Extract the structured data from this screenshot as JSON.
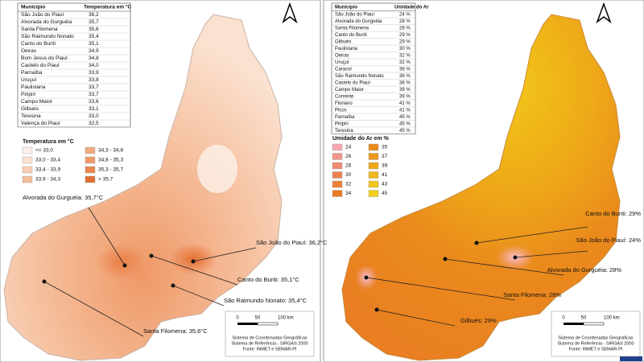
{
  "temperature_panel": {
    "table": {
      "header": [
        "Município",
        "Temperatura em °C"
      ],
      "rows": [
        [
          "São João do Piauí",
          "36,2"
        ],
        [
          "Alvorada do Gurguéia",
          "35,7"
        ],
        [
          "Santa Filomena",
          "35,6"
        ],
        [
          "São Raimundo Nonato",
          "35,4"
        ],
        [
          "Canto do Buriti",
          "35,1"
        ],
        [
          "Oeiras",
          "34,9"
        ],
        [
          "Bom Jesus do Piauí",
          "34,8"
        ],
        [
          "Castelo do Piauí",
          "34,0"
        ],
        [
          "Parnaíba",
          "33,9"
        ],
        [
          "Uruçuí",
          "33,8"
        ],
        [
          "Paulistana",
          "33,7"
        ],
        [
          "Piripiri",
          "33,7"
        ],
        [
          "Campo Maior",
          "33,6"
        ],
        [
          "Gilbués",
          "33,1"
        ],
        [
          "Teresina",
          "33,0"
        ],
        [
          "Valença do Piauí",
          "32,5"
        ]
      ]
    },
    "legend": {
      "title": "Temperatura em °C",
      "items": [
        {
          "label": "<= 33,0",
          "color": "#fdf1ea"
        },
        {
          "label": "33,0 - 33,4",
          "color": "#fbe1d0"
        },
        {
          "label": "33,4 - 33,9",
          "color": "#f8cfb5"
        },
        {
          "label": "33,9 - 34,3",
          "color": "#f5bd9a"
        },
        {
          "label": "34,3 - 34,8",
          "color": "#f2ab80"
        },
        {
          "label": "34,8 - 35,3",
          "color": "#ef9866"
        },
        {
          "label": "35,3 - 35,7",
          "color": "#eb844c"
        },
        {
          "label": "> 35,7",
          "color": "#e46f33"
        }
      ]
    },
    "annotations": [
      "Alvorada do Gurguéia: 35,7°C",
      "São João do Piauí: 36,2°C",
      "Canto do Buriti: 35,1°C",
      "São Raimundo Nonato: 35,4°C",
      "Santa Filomena: 35,6°C"
    ],
    "scale": [
      "0",
      "50",
      "100 km"
    ],
    "credits": [
      "Sistema de Coordenadas Geográficas",
      "Sistema de Referência - SIRGAS 2000",
      "Fonte: INMET e SEMAR-PI"
    ]
  },
  "humidity_panel": {
    "table": {
      "header": [
        "Município",
        "Umidade do Ar"
      ],
      "rows": [
        [
          "São João do Piauí",
          "24 %"
        ],
        [
          "Alvorada do Gurguéia",
          "28 %"
        ],
        [
          "Santa Filomena",
          "28 %"
        ],
        [
          "Canto do Buriti",
          "29 %"
        ],
        [
          "Gilbués",
          "29 %"
        ],
        [
          "Paulistana",
          "30 %"
        ],
        [
          "Oeiras",
          "32 %"
        ],
        [
          "Uruçuí",
          "32 %"
        ],
        [
          "Caracol",
          "36 %"
        ],
        [
          "São Raimundo Nonato",
          "36 %"
        ],
        [
          "Castelo do Piauí",
          "38 %"
        ],
        [
          "Campo Maior",
          "39 %"
        ],
        [
          "Corrente",
          "39 %"
        ],
        [
          "Floriano",
          "41 %"
        ],
        [
          "Picos",
          "41 %"
        ],
        [
          "Parnaíba",
          "45 %"
        ],
        [
          "Piripiri",
          "45 %"
        ],
        [
          "Teresina",
          "45 %"
        ]
      ]
    },
    "legend": {
      "title": "Umidade do Ar em %",
      "items": [
        {
          "label": "24",
          "color": "#f7a6b0"
        },
        {
          "label": "26",
          "color": "#f3958f"
        },
        {
          "label": "28",
          "color": "#ef8a70"
        },
        {
          "label": "30",
          "color": "#ec8250"
        },
        {
          "label": "32",
          "color": "#ea7f35"
        },
        {
          "label": "34",
          "color": "#e97d22"
        },
        {
          "label": "35",
          "color": "#ea8a1c"
        },
        {
          "label": "37",
          "color": "#ec981a"
        },
        {
          "label": "39",
          "color": "#eea818"
        },
        {
          "label": "41",
          "color": "#f0b818"
        },
        {
          "label": "43",
          "color": "#f2c619"
        },
        {
          "label": "45",
          "color": "#f3d01c"
        }
      ]
    },
    "annotations": [
      "Canto do Buriti: 29%",
      "São João do Piauí: 24%",
      "Alvorada do Gurguéia: 28%",
      "Santa Filomena: 28%",
      "Gilbués: 29%"
    ],
    "scale": [
      "0",
      "50",
      "100 km"
    ],
    "credits": [
      "Sistema de Coordenadas Geográficas",
      "Sistema de Referência - SIRGAS 2000",
      "Fonte: INMET e SEMAR-PI"
    ]
  }
}
